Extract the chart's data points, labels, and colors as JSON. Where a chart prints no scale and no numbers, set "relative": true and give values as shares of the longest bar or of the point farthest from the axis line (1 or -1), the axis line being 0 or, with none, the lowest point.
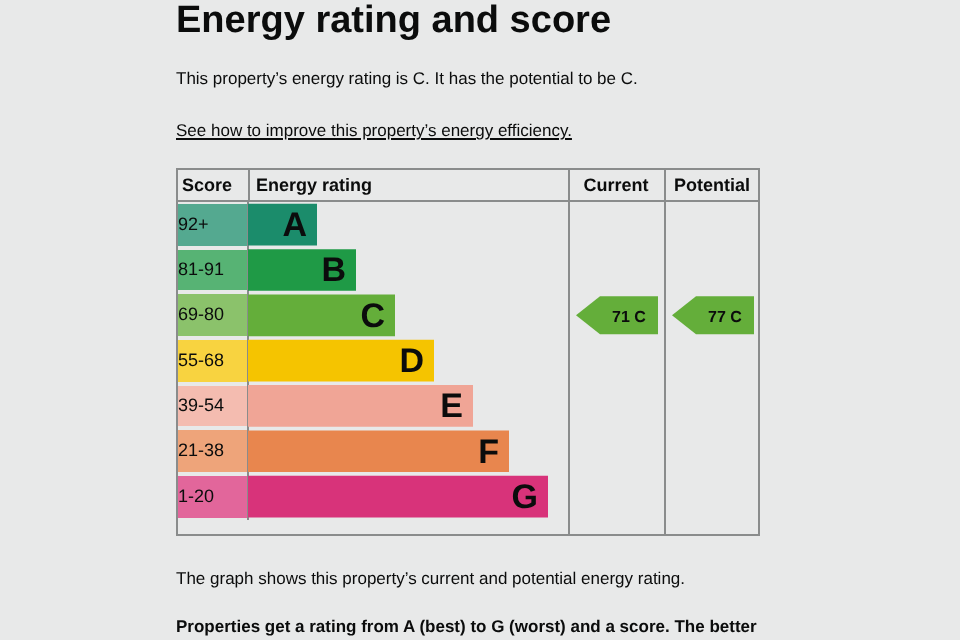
{
  "chart_data": {
    "type": "bar",
    "orientation": "horizontal",
    "relative": true,
    "title": "Energy rating and score",
    "subtitle": "This property’s energy rating is C. It has the potential to be C.",
    "ylabel": "Score",
    "xlabel": "Energy rating",
    "categories": [
      "92+",
      "81-91",
      "69-80",
      "55-68",
      "39-54",
      "21-38",
      "1-20"
    ],
    "values": [
      0.23,
      0.36,
      0.49,
      0.62,
      0.75,
      0.87,
      1
    ],
    "colors": [
      "#1b8c6b",
      "#1f9a46",
      "#64ae3a",
      "#f5c400",
      "#f0a596",
      "#e8864e",
      "#d8337a"
    ],
    "annotations": [
      "See how to improve this property’s energy efficiency.",
      "Current",
      "Potential",
      "71 C",
      "77 C",
      "The graph shows this property’s current and potential energy rating.",
      "Properties get a rating from A (best) to G (worst) and a score. The better",
      {
        "text": "A",
        "x": 0.23,
        "y": "92+"
      },
      {
        "text": "B",
        "x": 0.36,
        "y": "81-91"
      },
      {
        "text": "C",
        "x": 0.49,
        "y": "69-80"
      },
      {
        "text": "D",
        "x": 0.62,
        "y": "55-68"
      },
      {
        "text": "E",
        "x": 0.75,
        "y": "39-54"
      },
      {
        "text": "F",
        "x": 0.87,
        "y": "21-38"
      },
      {
        "text": "G",
        "x": 1,
        "y": "1-20"
      }
    ]
  }
}
